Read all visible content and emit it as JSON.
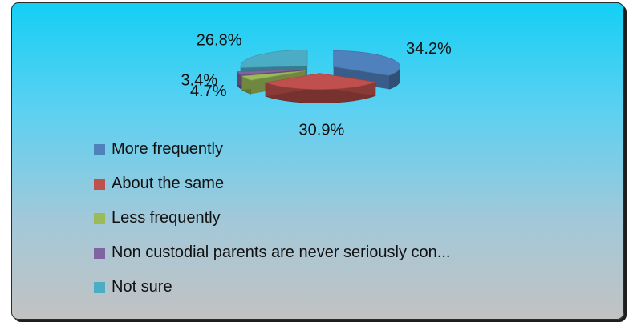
{
  "chart_data": {
    "type": "pie",
    "title": "",
    "series": [
      {
        "name": "More frequently",
        "value": 34.2,
        "label": "34.2%",
        "color": "#4f81bd"
      },
      {
        "name": "About the same",
        "value": 30.9,
        "label": "30.9%",
        "color": "#c0504d"
      },
      {
        "name": "Less frequently",
        "value": 4.7,
        "label": "4.7%",
        "color": "#9bbb59"
      },
      {
        "name": "Non custodial parents are never seriously con...",
        "value": 3.4,
        "label": "3.4%",
        "color": "#8064a2"
      },
      {
        "name": "Not sure",
        "value": 26.8,
        "label": "26.8%",
        "color": "#4bacc6"
      }
    ],
    "legend_position": "bottom-left",
    "style": "3d-exploded"
  }
}
